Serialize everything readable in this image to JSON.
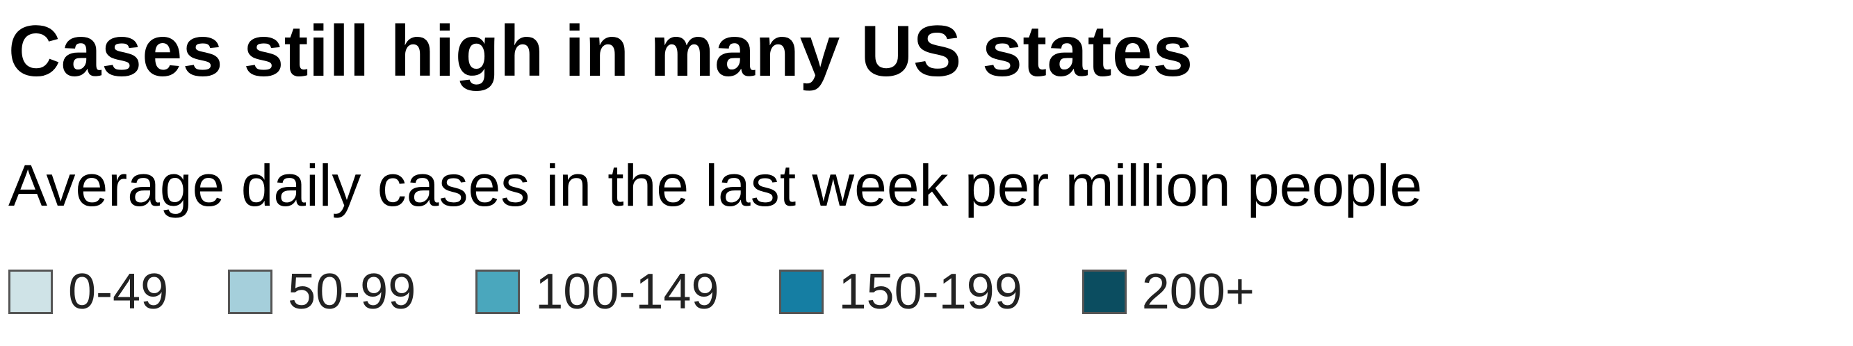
{
  "chart_data": {
    "type": "legend",
    "title": "Cases still high in many US states",
    "subtitle": "Average daily cases in the last week per million people",
    "legend": [
      {
        "label": "0-49",
        "color": "#cfe3e7"
      },
      {
        "label": "50-99",
        "color": "#a5cfdb"
      },
      {
        "label": "100-149",
        "color": "#4aa7bd"
      },
      {
        "label": "150-199",
        "color": "#157ea3"
      },
      {
        "label": "200+",
        "color": "#0b4d60"
      }
    ]
  }
}
